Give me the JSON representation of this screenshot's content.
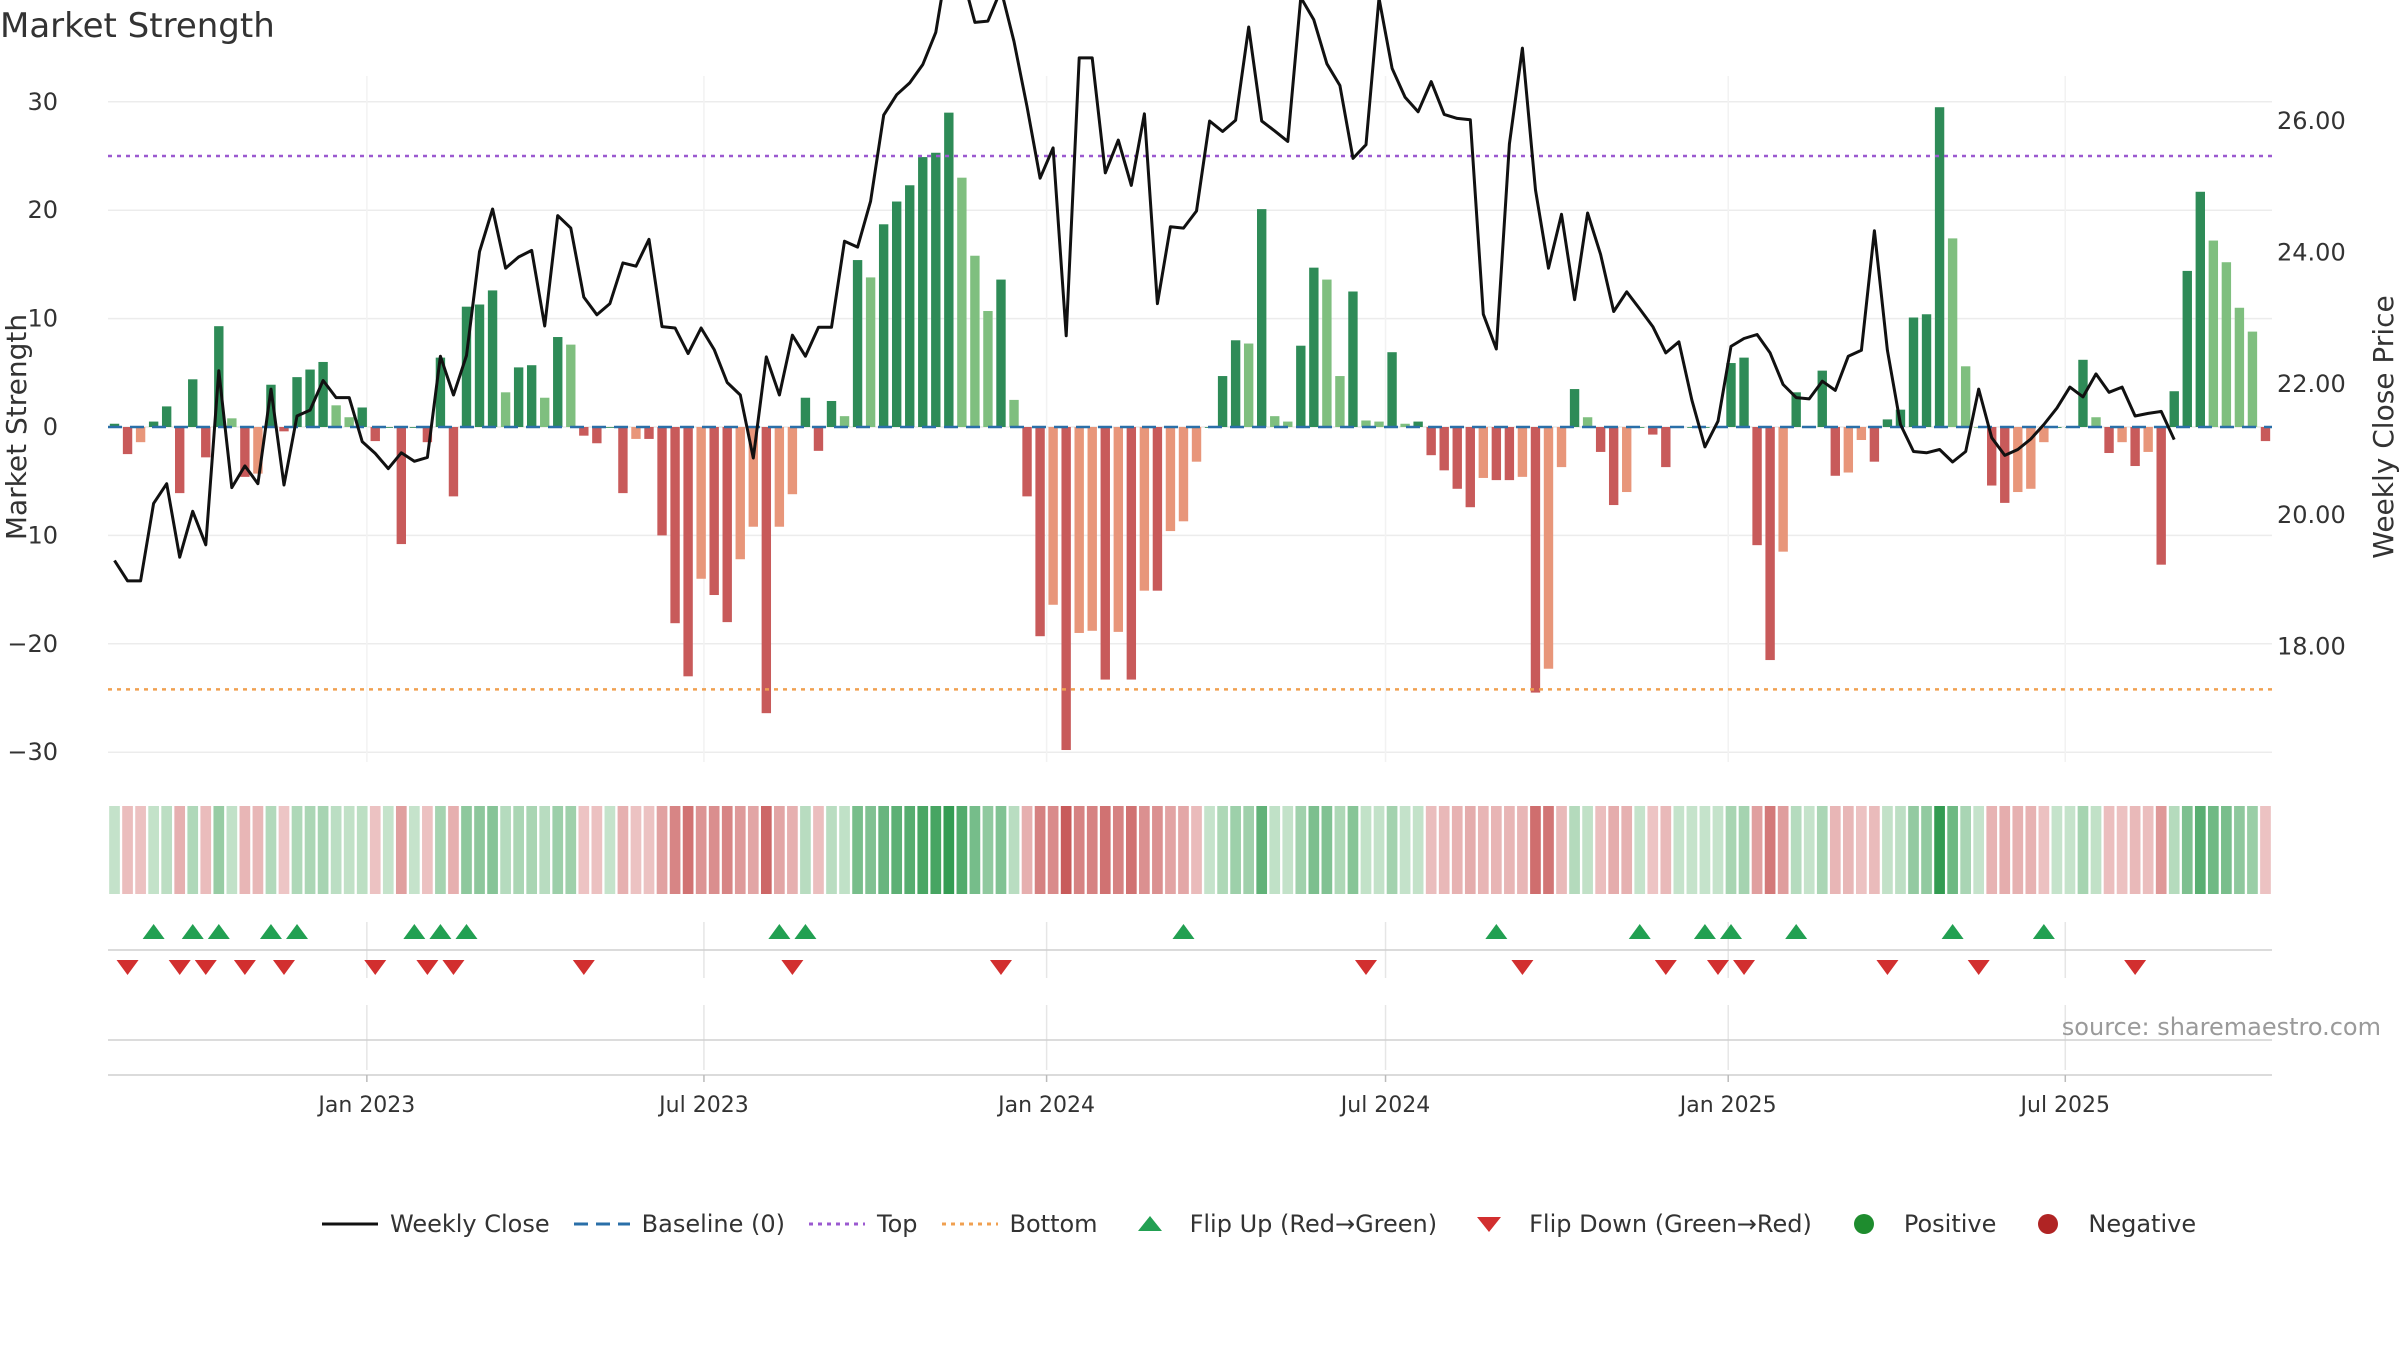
{
  "title": "Market Strength",
  "source": "source: sharemaestro.com",
  "chart_data": {
    "type": "bar",
    "ylabel": "Market Strength",
    "y2label": "Weekly Close Price",
    "ylim": [
      -33,
      30
    ],
    "y2lim": [
      16.06,
      26.5
    ],
    "yticks": [
      30,
      20,
      10,
      0,
      -10,
      -20,
      -30
    ],
    "ytick_labels": [
      "30",
      "20",
      "10",
      "0",
      "−10",
      "−20",
      "−30"
    ],
    "y2ticks": [
      26,
      24,
      22,
      20,
      18
    ],
    "y2tick_labels": [
      "26.00",
      "24.00",
      "22.00",
      "20.00",
      "18.00"
    ],
    "top_level": 25,
    "bottom_level": -24.2,
    "start_date": "2022-08-15",
    "x_ticks": [
      "Jan 2023",
      "Jul 2023",
      "Jan 2024",
      "Jul 2024",
      "Jan 2025",
      "Jul 2025"
    ],
    "grid": true,
    "legend_position": "bottom",
    "colors": {
      "strong_pos": "#2e8b57",
      "light_pos": "#7fbf7f",
      "strong_neg": "#c85a5a",
      "light_neg": "#e8967a",
      "close_line": "#111111",
      "baseline": "#2a6fa8",
      "top": "#9b59d0",
      "bottom": "#f0a050",
      "flip_up": "#22a052",
      "flip_down": "#d22f2f",
      "positive": "#1e8c2e",
      "negative": "#b02424"
    },
    "strength": [
      0.3,
      -2.5,
      -1.4,
      0.5,
      1.9,
      -6.1,
      4.4,
      -2.8,
      9.3,
      0.8,
      -4.6,
      -4.3,
      3.9,
      -0.4,
      4.6,
      5.3,
      6,
      2,
      0.9,
      1.8,
      -1.3,
      0,
      -10.8,
      0,
      -1.4,
      6.4,
      -6.4,
      11.1,
      11.3,
      12.6,
      3.2,
      5.5,
      5.7,
      2.7,
      8.3,
      7.6,
      -0.8,
      -1.5,
      0,
      -6.1,
      -1.1,
      -1.1,
      -10,
      -18.1,
      -23,
      -14,
      -15.5,
      -18,
      -12.2,
      -9.2,
      -26.4,
      -9.2,
      -6.2,
      2.7,
      -2.2,
      2.4,
      1,
      15.4,
      13.8,
      18.7,
      20.8,
      22.3,
      24.9,
      25.3,
      29,
      23,
      15.8,
      10.7,
      13.6,
      2.5,
      -6.4,
      -19.3,
      -16.4,
      -29.8,
      -19,
      -18.8,
      -23.3,
      -18.9,
      -23.3,
      -15.1,
      -15.1,
      -9.6,
      -8.7,
      -3.2,
      0,
      4.7,
      8,
      7.7,
      20.1,
      1,
      0.5,
      7.5,
      14.7,
      13.6,
      4.7,
      12.5,
      0.6,
      0.5,
      6.9,
      0.3,
      0.5,
      -2.6,
      -4,
      -5.7,
      -7.4,
      -4.7,
      -4.9,
      -4.9,
      -4.6,
      -24.5,
      -22.3,
      -3.7,
      3.5,
      0.9,
      -2.3,
      -7.2,
      -6,
      0,
      -0.7,
      -3.7,
      0,
      0,
      0,
      0,
      5.9,
      6.4,
      -10.9,
      -21.5,
      -11.5,
      3.2,
      0,
      5.2,
      -4.5,
      -4.2,
      -1.2,
      -3.2,
      0.7,
      1.6,
      10.1,
      10.4,
      29.5,
      17.4,
      5.6,
      0,
      -5.4,
      -7,
      -6,
      -5.7,
      -1.4,
      0,
      0,
      6.2,
      0.9,
      -2.4,
      -1.4,
      -3.6,
      -2.3,
      -12.7,
      3.3,
      14.4,
      21.7,
      17.2,
      15.2,
      11,
      8.8,
      -1.3
    ],
    "close": [
      19.31,
      19.0,
      19.0,
      20.18,
      20.48,
      19.36,
      20.06,
      19.55,
      22.2,
      20.42,
      20.75,
      20.48,
      21.92,
      20.46,
      21.51,
      21.6,
      22.05,
      21.79,
      21.79,
      21.12,
      20.94,
      20.71,
      20.95,
      20.82,
      20.88,
      22.42,
      21.83,
      22.43,
      24.01,
      24.66,
      23.76,
      23.93,
      24.03,
      22.88,
      24.56,
      24.37,
      23.32,
      23.05,
      23.22,
      23.84,
      23.79,
      24.2,
      22.87,
      22.85,
      22.46,
      22.85,
      22.52,
      22.02,
      21.83,
      20.87,
      22.41,
      21.83,
      22.74,
      22.42,
      22.86,
      22.86,
      24.17,
      24.08,
      24.78,
      26.09,
      26.4,
      26.58,
      26.86,
      27.35,
      28.54,
      28.24,
      27.5,
      27.52,
      28.0,
      27.21,
      26.22,
      25.13,
      25.59,
      22.73,
      26.96,
      26.96,
      25.21,
      25.71,
      25.02,
      26.11,
      23.22,
      24.39,
      24.37,
      24.63,
      26.0,
      25.84,
      26.01,
      27.43,
      26.0,
      25.85,
      25.69,
      27.88,
      27.54,
      26.87,
      26.54,
      25.43,
      25.64,
      27.87,
      26.8,
      26.36,
      26.14,
      26.6,
      26.1,
      26.04,
      26.02,
      23.06,
      22.53,
      25.65,
      27.11,
      24.95,
      23.76,
      24.58,
      23.28,
      24.6,
      23.97,
      23.1,
      23.4,
      23.14,
      22.87,
      22.47,
      22.64,
      21.75,
      21.04,
      21.43,
      22.57,
      22.69,
      22.75,
      22.47,
      21.99,
      21.79,
      21.77,
      22.04,
      21.9,
      22.42,
      22.51,
      24.33,
      22.51,
      21.38,
      20.97,
      20.95,
      21.0,
      20.81,
      20.97,
      21.92,
      21.18,
      20.91,
      21.0,
      21.16,
      21.38,
      21.63,
      21.95,
      21.8,
      22.15,
      21.87,
      21.95,
      21.51,
      21.55,
      21.58,
      21.15
    ],
    "flip_up": [
      3,
      6,
      8,
      12,
      14,
      23,
      25,
      27,
      51,
      53,
      82,
      106,
      117,
      122,
      124,
      129,
      141,
      148
    ],
    "flip_down": [
      1,
      5,
      7,
      10,
      13,
      20,
      24,
      26,
      36,
      52,
      68,
      96,
      108,
      119,
      123,
      125,
      136,
      143,
      155
    ]
  },
  "legend": [
    {
      "name": "Weekly Close",
      "kind": "line"
    },
    {
      "name": "Baseline (0)",
      "kind": "dash"
    },
    {
      "name": "Top",
      "kind": "dot-purple"
    },
    {
      "name": "Bottom",
      "kind": "dot-orange"
    },
    {
      "name": "Flip Up (Red→Green)",
      "kind": "tri-up"
    },
    {
      "name": "Flip Down (Green→Red)",
      "kind": "tri-down"
    },
    {
      "name": "Positive",
      "kind": "dot-green"
    },
    {
      "name": "Negative",
      "kind": "dot-red"
    }
  ]
}
